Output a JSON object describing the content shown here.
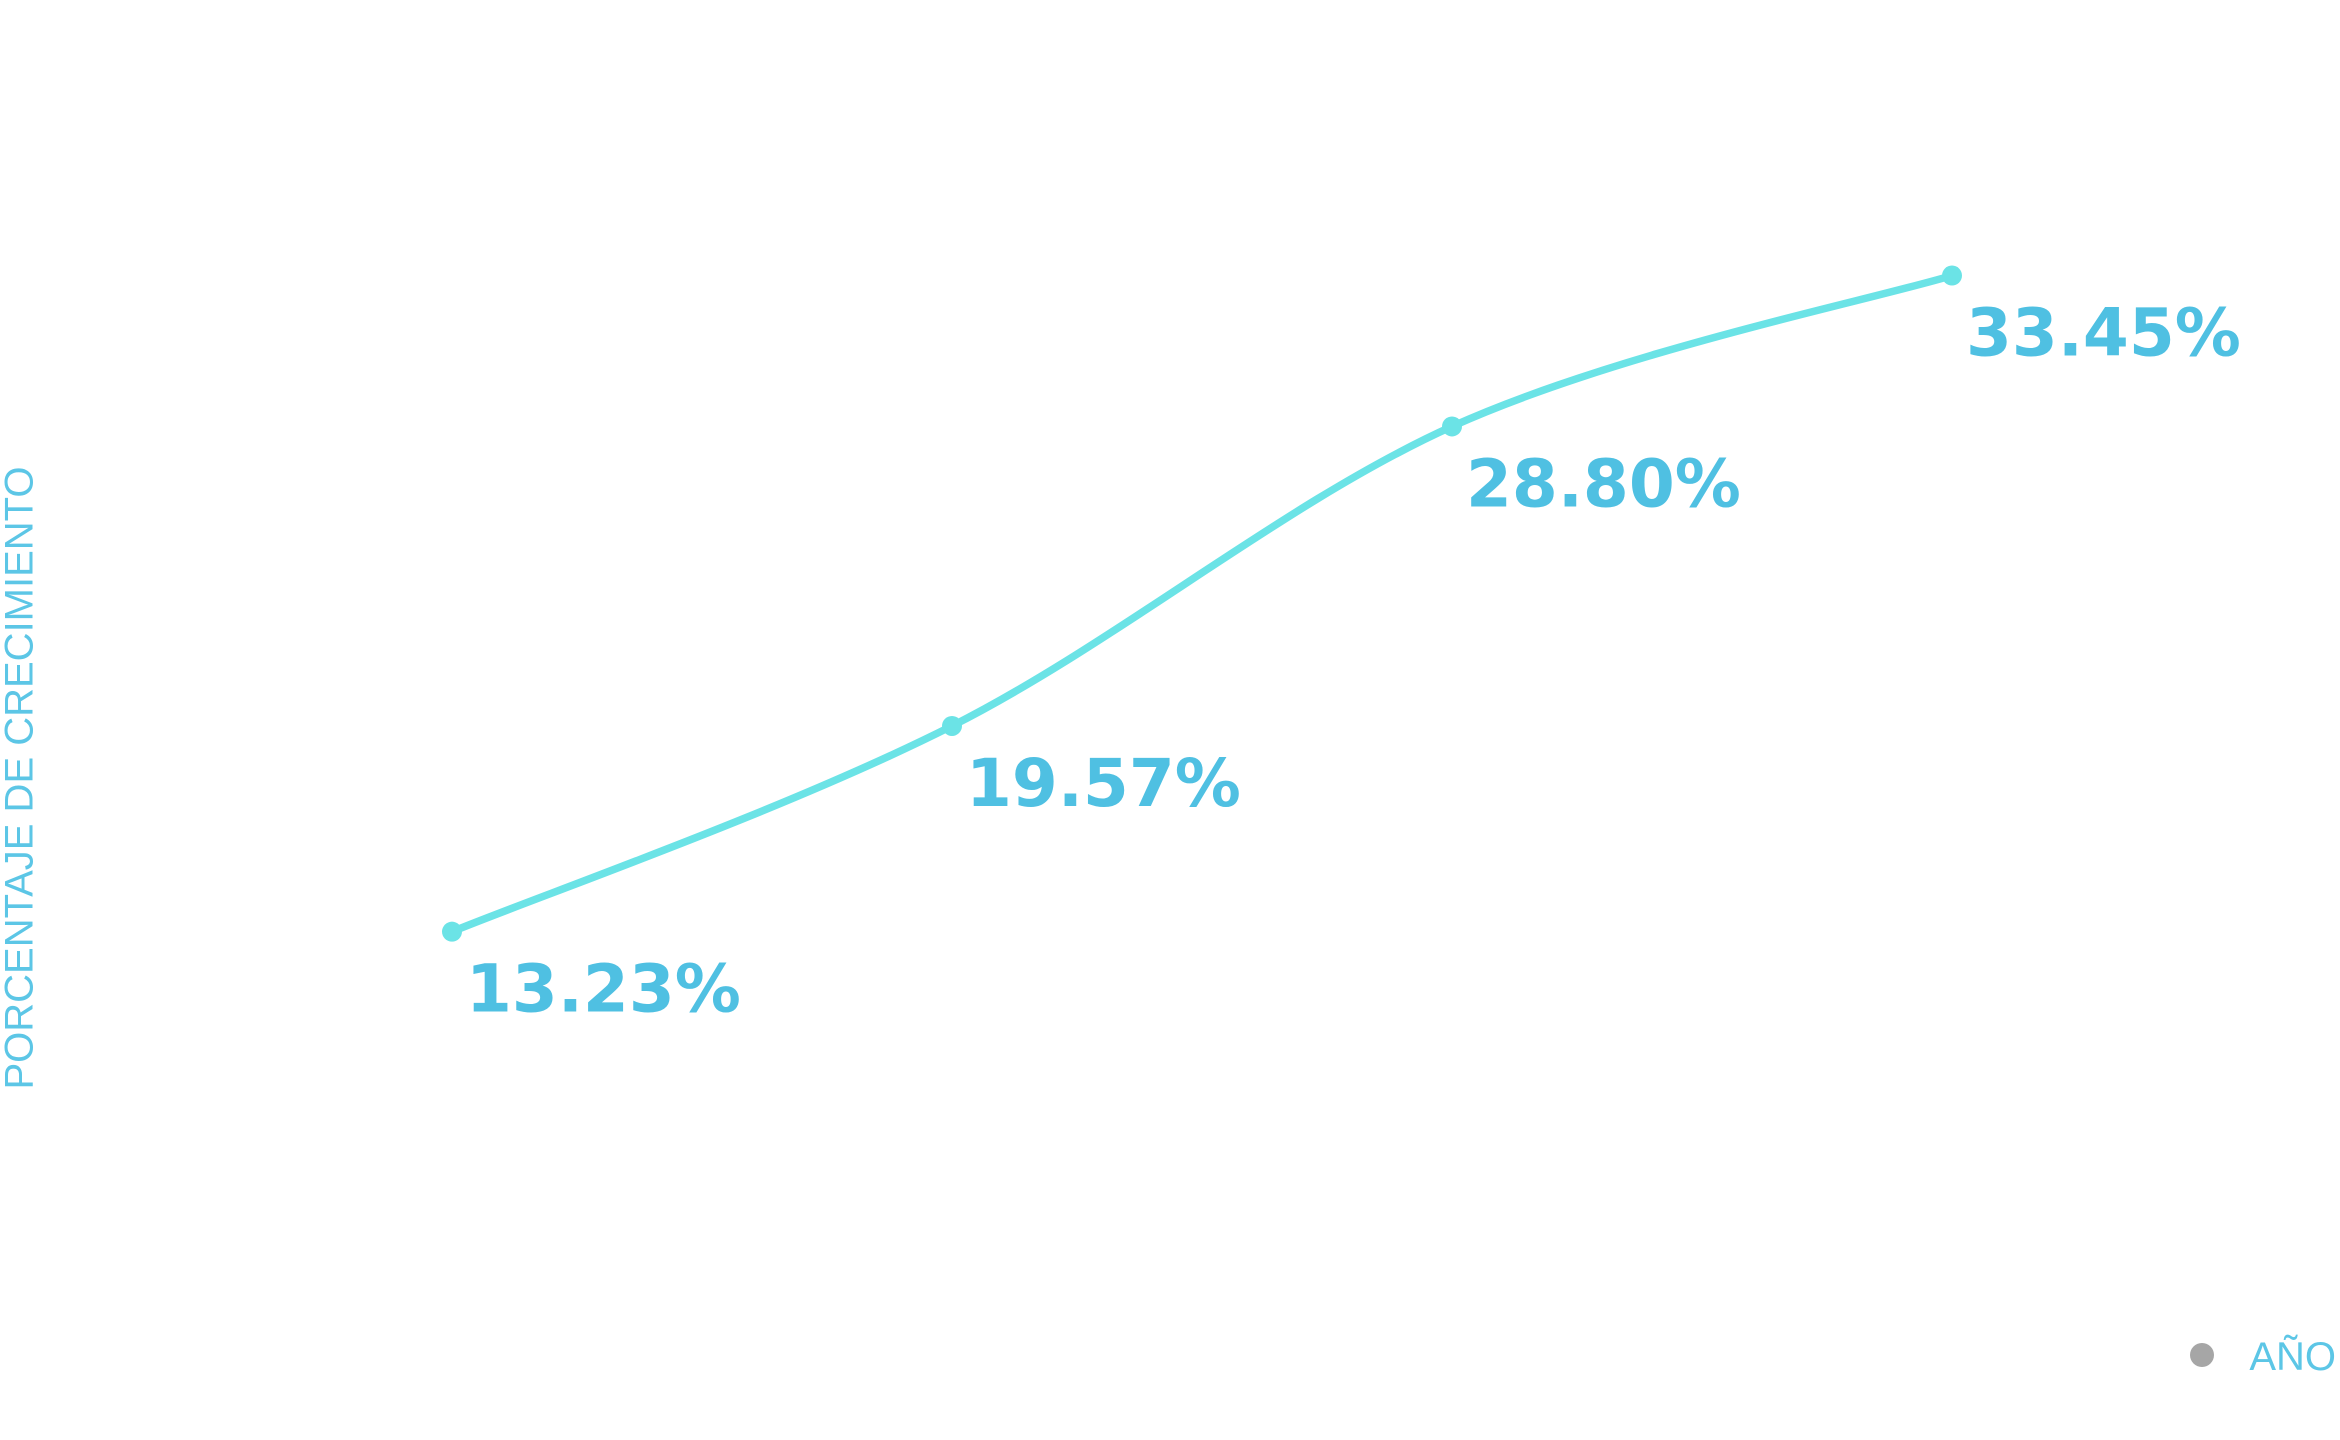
{
  "chart_data": {
    "type": "line",
    "y_label": "PORCENTAJE DE CRECIMIENTO",
    "categories": [
      null,
      null,
      null,
      null
    ],
    "series": [
      {
        "name": "AÑO",
        "color": "#6be3e6",
        "legend_color": "#a6a6a6",
        "values": [
          13.23,
          19.57,
          28.8,
          33.45
        ],
        "value_labels": [
          "13.23%",
          "19.57%",
          "28.80%",
          "33.45%"
        ]
      }
    ],
    "ylim": [
      0,
      40
    ],
    "grid": false,
    "legend": "bottom-right"
  }
}
